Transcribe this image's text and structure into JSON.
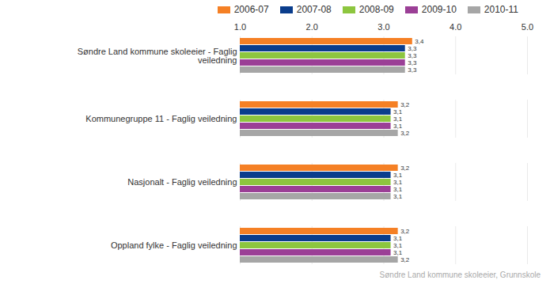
{
  "chart_data": {
    "type": "bar",
    "orientation": "horizontal",
    "caption": "Søndre Land kommune skoleeier, Grunnskole",
    "categories": [
      "Søndre Land kommune skoleeier - Faglig veiledning",
      "Kommunegruppe 11 - Faglig veiledning",
      "Nasjonalt - Faglig veiledning",
      "Oppland fylke - Faglig veiledning"
    ],
    "series": [
      {
        "name": "2006-07",
        "color": "#f58025",
        "values": [
          3.4,
          3.2,
          3.2,
          3.2
        ],
        "value_labels": [
          "3,4",
          "3,2",
          "3,2",
          "3,2"
        ]
      },
      {
        "name": "2007-08",
        "color": "#0a3d8c",
        "values": [
          3.3,
          3.1,
          3.1,
          3.1
        ],
        "value_labels": [
          "3,3",
          "3,1",
          "3,1",
          "3,1"
        ]
      },
      {
        "name": "2008-09",
        "color": "#8dc63f",
        "values": [
          3.3,
          3.1,
          3.1,
          3.1
        ],
        "value_labels": [
          "3,3",
          "3,1",
          "3,1",
          "3,1"
        ]
      },
      {
        "name": "2009-10",
        "color": "#9b3f96",
        "values": [
          3.3,
          3.1,
          3.1,
          3.1
        ],
        "value_labels": [
          "3,3",
          "3,1",
          "3,1",
          "3,1"
        ]
      },
      {
        "name": "2010-11",
        "color": "#a6a6a6",
        "values": [
          3.3,
          3.2,
          3.1,
          3.2
        ],
        "value_labels": [
          "3,3",
          "3,2",
          "3,1",
          "3,2"
        ]
      }
    ],
    "xlim": [
      1,
      5
    ],
    "xticks": [
      1,
      2,
      3,
      4,
      5
    ],
    "grid": true,
    "legend": "top",
    "data_labels": true
  }
}
